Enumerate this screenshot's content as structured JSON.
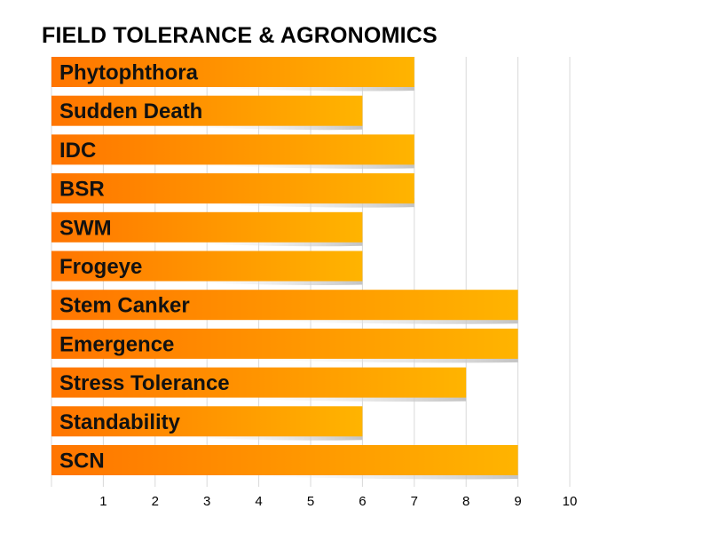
{
  "title": "FIELD TOLERANCE & AGRONOMICS",
  "colors": {
    "bar_start": "#ff7500",
    "bar_end": "#ffb400",
    "grid": "#d9d9d9"
  },
  "chart_data": {
    "type": "bar",
    "orientation": "horizontal",
    "title": "FIELD TOLERANCE & AGRONOMICS",
    "xlabel": "",
    "ylabel": "",
    "categories": [
      "Phytophthora",
      "Sudden Death",
      "IDC",
      "BSR",
      "SWM",
      "Frogeye",
      "Stem Canker",
      "Emergence",
      "Stress Tolerance",
      "Standability",
      "SCN"
    ],
    "values": [
      7,
      6,
      7,
      7,
      6,
      6,
      9,
      9,
      8,
      6,
      9
    ],
    "xlim": [
      0,
      10
    ],
    "xticks": [
      1,
      2,
      3,
      4,
      5,
      6,
      7,
      8,
      9,
      10
    ],
    "grid": "vertical",
    "legend": "none"
  }
}
